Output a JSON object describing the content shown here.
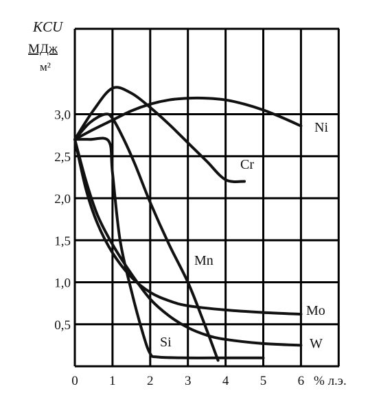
{
  "chart_data": {
    "type": "line",
    "ylabel_lines": [
      "KCU",
      "МДж",
      "м²"
    ],
    "xlabel": "% л.э.",
    "xlim": [
      0,
      7
    ],
    "ylim": [
      0,
      3.5
    ],
    "x_ticks": [
      "0",
      "1",
      "2",
      "3",
      "4",
      "5",
      "6"
    ],
    "y_ticks": [
      "0,5",
      "1,0",
      "1,5",
      "2,0",
      "2,5",
      "3,0"
    ],
    "y_tick_values": [
      0.5,
      1.0,
      1.5,
      2.0,
      2.5,
      3.0
    ],
    "grid": true,
    "series": [
      {
        "name": "Ni",
        "x": [
          0,
          0.5,
          1.0,
          1.5,
          2.0,
          2.5,
          3.0,
          3.5,
          4.0,
          4.5,
          5.0,
          5.5,
          6.0
        ],
        "y": [
          2.7,
          2.82,
          2.93,
          3.04,
          3.12,
          3.17,
          3.19,
          3.19,
          3.17,
          3.12,
          3.05,
          2.96,
          2.86
        ]
      },
      {
        "name": "Cr",
        "x": [
          0,
          0.5,
          1.0,
          1.5,
          2.0,
          2.5,
          3.0,
          3.5,
          4.0,
          4.5
        ],
        "y": [
          2.7,
          3.05,
          3.31,
          3.25,
          3.08,
          2.88,
          2.66,
          2.44,
          2.22,
          2.2
        ]
      },
      {
        "name": "Mn",
        "x": [
          0,
          0.4,
          0.8,
          1.0,
          1.3,
          1.6,
          2.0,
          2.5,
          3.0,
          3.4,
          3.8
        ],
        "y": [
          2.7,
          2.9,
          3.0,
          2.95,
          2.7,
          2.4,
          1.95,
          1.45,
          1.0,
          0.55,
          0.07
        ]
      },
      {
        "name": "Si",
        "x": [
          0,
          0.4,
          0.9,
          1.0,
          1.2,
          1.5,
          1.8,
          2.0,
          2.2,
          3.0,
          4.0,
          5.0
        ],
        "y": [
          2.7,
          2.7,
          2.68,
          2.3,
          1.5,
          0.9,
          0.4,
          0.15,
          0.11,
          0.1,
          0.1,
          0.1
        ]
      },
      {
        "name": "Mo",
        "x": [
          0,
          0.3,
          0.6,
          1.0,
          1.5,
          2.0,
          2.5,
          3.0,
          4.0,
          5.0,
          6.0
        ],
        "y": [
          2.7,
          2.1,
          1.7,
          1.35,
          1.06,
          0.88,
          0.78,
          0.72,
          0.67,
          0.64,
          0.62
        ]
      },
      {
        "name": "W",
        "x": [
          0,
          0.3,
          0.6,
          1.0,
          1.5,
          2.0,
          2.5,
          3.0,
          3.5,
          4.0,
          5.0,
          6.0
        ],
        "y": [
          2.7,
          2.2,
          1.8,
          1.45,
          1.1,
          0.8,
          0.6,
          0.46,
          0.37,
          0.32,
          0.27,
          0.25
        ]
      }
    ]
  }
}
